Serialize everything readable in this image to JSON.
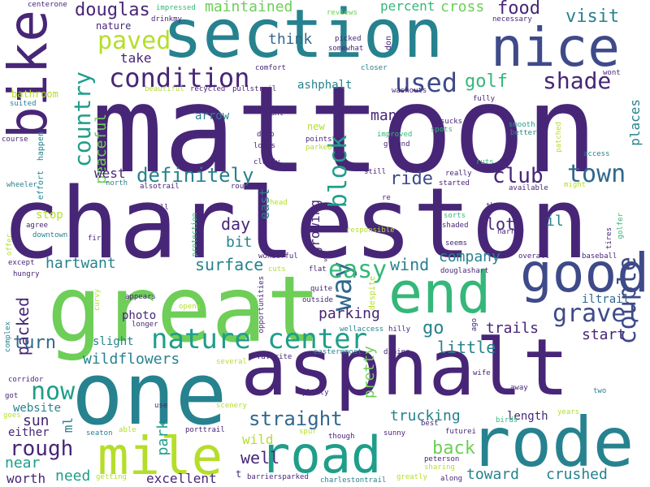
{
  "title": "word cloud",
  "palette": {
    "dark_purple": "#482677",
    "indigo": "#3e4a89",
    "blue": "#31688e",
    "teal": "#26828e",
    "green_teal": "#1f9e89",
    "green": "#35b779",
    "light_green": "#6ece58",
    "yellow_green": "#b5de2b"
  },
  "words": [
    {
      "id": "mattoon",
      "text": "mattoon",
      "color": "#482677"
    },
    {
      "id": "charleston",
      "text": "charleston",
      "color": "#482677"
    },
    {
      "id": "bike",
      "text": "bike",
      "color": "#482677"
    },
    {
      "id": "section",
      "text": "section",
      "color": "#26828e"
    },
    {
      "id": "great",
      "text": "great",
      "color": "#6ece58"
    },
    {
      "id": "one",
      "text": "one",
      "color": "#26828e"
    },
    {
      "id": "asphalt",
      "text": "asphalt",
      "color": "#482677"
    },
    {
      "id": "end",
      "text": "end",
      "color": "#35b779"
    },
    {
      "id": "good",
      "text": "good",
      "color": "#3e4a89"
    },
    {
      "id": "rode",
      "text": "rode",
      "color": "#26828e"
    },
    {
      "id": "mile",
      "text": "mile",
      "color": "#b5de2b"
    },
    {
      "id": "road",
      "text": "road",
      "color": "#1f9e89"
    },
    {
      "id": "nice",
      "text": "nice",
      "color": "#3e4a89"
    },
    {
      "id": "nature-center",
      "text": "nature center",
      "color": "#1f9e89"
    },
    {
      "id": "condition",
      "text": "condition",
      "color": "#482677"
    },
    {
      "id": "couple",
      "text": "couple",
      "color": "#3e4a89"
    },
    {
      "id": "gravel",
      "text": "gravel",
      "color": "#3e4a89"
    },
    {
      "id": "paved",
      "text": "paved",
      "color": "#1f9e89"
    },
    {
      "id": "country",
      "text": "country",
      "color": "#1f9e89"
    },
    {
      "id": "used",
      "text": "used",
      "color": "#3e4a89"
    },
    {
      "id": "shade",
      "text": "shade",
      "color": "#482677"
    },
    {
      "id": "way",
      "text": "way",
      "color": "#31688e"
    },
    {
      "id": "block",
      "text": "block",
      "color": "#1f9e89"
    },
    {
      "id": "easy",
      "text": "easy",
      "color": "#35b779"
    },
    {
      "id": "town",
      "text": "town",
      "color": "#31688e"
    },
    {
      "id": "club",
      "text": "club",
      "color": "#482677"
    },
    {
      "id": "definitely",
      "text": "definitely",
      "color": "#26828e"
    },
    {
      "id": "douglas",
      "text": "douglas",
      "color": "#482677"
    },
    {
      "id": "maintained",
      "text": "maintained",
      "color": "#6ece58"
    },
    {
      "id": "percent",
      "text": "percent",
      "color": "#35b779"
    },
    {
      "id": "cross",
      "text": "cross",
      "color": "#6ece58"
    },
    {
      "id": "food",
      "text": "food",
      "color": "#482677"
    },
    {
      "id": "visit",
      "text": "visit",
      "color": "#26828e"
    },
    {
      "id": "golf",
      "text": "golf",
      "color": "#35b779"
    },
    {
      "id": "take",
      "text": "take",
      "color": "#482677"
    },
    {
      "id": "think",
      "text": "think",
      "color": "#31688e"
    },
    {
      "id": "nature",
      "text": "nature",
      "color": "#482677"
    },
    {
      "id": "peaceful",
      "text": "peaceful",
      "color": "#6ece58"
    },
    {
      "id": "many",
      "text": "many",
      "color": "#482677"
    },
    {
      "id": "ride",
      "text": "ride",
      "color": "#3e4a89"
    },
    {
      "id": "west",
      "text": "west",
      "color": "#482677"
    },
    {
      "id": "wind",
      "text": "wind",
      "color": "#26828e"
    },
    {
      "id": "company",
      "text": "company",
      "color": "#26828e"
    },
    {
      "id": "lot",
      "text": "lot",
      "color": "#482677"
    },
    {
      "id": "day",
      "text": "day",
      "color": "#482677"
    },
    {
      "id": "bit",
      "text": "bit",
      "color": "#26828e"
    },
    {
      "id": "surface",
      "text": "surface",
      "color": "#26828e"
    },
    {
      "id": "hartwant",
      "text": "hartwant",
      "color": "#26828e"
    },
    {
      "id": "packed",
      "text": "packed",
      "color": "#482677"
    },
    {
      "id": "turn",
      "text": "turn",
      "color": "#31688e"
    },
    {
      "id": "now",
      "text": "now",
      "color": "#1f9e89"
    },
    {
      "id": "sun",
      "text": "sun",
      "color": "#482677"
    },
    {
      "id": "rough",
      "text": "rough",
      "color": "#482677"
    },
    {
      "id": "near",
      "text": "near",
      "color": "#1f9e89"
    },
    {
      "id": "wildflowers",
      "text": "wildflowers",
      "color": "#26828e"
    },
    {
      "id": "little",
      "text": "little",
      "color": "#26828e"
    },
    {
      "id": "trails",
      "text": "trails",
      "color": "#482677"
    },
    {
      "id": "go",
      "text": "go",
      "color": "#26828e"
    },
    {
      "id": "start",
      "text": "start",
      "color": "#482677"
    },
    {
      "id": "parking",
      "text": "parking",
      "color": "#482677"
    },
    {
      "id": "straight",
      "text": "straight",
      "color": "#31688e"
    },
    {
      "id": "well",
      "text": "well",
      "color": "#482677"
    },
    {
      "id": "back",
      "text": "back",
      "color": "#6ece58"
    },
    {
      "id": "trucking",
      "text": "trucking",
      "color": "#26828e"
    },
    {
      "id": "toward",
      "text": "toward",
      "color": "#26828e"
    },
    {
      "id": "crushed",
      "text": "crushed",
      "color": "#26828e"
    },
    {
      "id": "excellent",
      "text": "excellent",
      "color": "#482677"
    },
    {
      "id": "need",
      "text": "need",
      "color": "#1f9e89"
    },
    {
      "id": "worth",
      "text": "worth",
      "color": "#482677"
    },
    {
      "id": "park",
      "text": "park",
      "color": "#1f9e89"
    },
    {
      "id": "wild",
      "text": "wild",
      "color": "#b5de2b"
    },
    {
      "id": "pretty",
      "text": "pretty",
      "color": "#6ece58"
    },
    {
      "id": "length",
      "text": "length",
      "color": "#482677"
    },
    {
      "id": "slight",
      "text": "slight",
      "color": "#26828e"
    },
    {
      "id": "photo",
      "text": "photo",
      "color": "#482677"
    },
    {
      "id": "iltrail",
      "text": "iltrail",
      "color": "#31688e"
    },
    {
      "id": "places",
      "text": "places",
      "color": "#26828e"
    },
    {
      "id": "growing",
      "text": "growing",
      "color": "#482677"
    },
    {
      "id": "east",
      "text": "east",
      "color": "#26828e"
    },
    {
      "id": "il",
      "text": "il",
      "color": "#26828e"
    },
    {
      "id": "stop",
      "text": "stop",
      "color": "#b5de2b"
    },
    {
      "id": "website",
      "text": "website",
      "color": "#26828e"
    },
    {
      "id": "either",
      "text": "either",
      "color": "#482677"
    },
    {
      "id": "ml",
      "text": "ml",
      "color": "#26828e"
    },
    {
      "id": "new",
      "text": "new",
      "color": "#b5de2b"
    },
    {
      "id": "arrow",
      "text": "arrow",
      "color": "#26828e"
    },
    {
      "id": "bathroom",
      "text": "bathroom",
      "color": "#b5de2b"
    },
    {
      "id": "ashphalt",
      "text": "ashphalt",
      "color": "#26828e"
    },
    {
      "id": "impressed",
      "text": "impressed",
      "color": "#35b779"
    },
    {
      "id": "drinkmy",
      "text": "drinkmy",
      "color": "#482677"
    },
    {
      "id": "centerone",
      "text": "centerone",
      "color": "#482677"
    },
    {
      "id": "reviews",
      "text": "reviews",
      "color": "#6ece58"
    },
    {
      "id": "picked",
      "text": "picked",
      "color": "#482677"
    },
    {
      "id": "somewhat",
      "text": "somewhat",
      "color": "#482677"
    },
    {
      "id": "don",
      "text": "don",
      "color": "#482677"
    },
    {
      "id": "necessary",
      "text": "necessary",
      "color": "#482677"
    },
    {
      "id": "comfort",
      "text": "comfort",
      "color": "#482677"
    },
    {
      "id": "closer",
      "text": "closer",
      "color": "#26828e"
    },
    {
      "id": "wont",
      "text": "wont",
      "color": "#482677"
    },
    {
      "id": "beautiful",
      "text": "beautiful",
      "color": "#b5de2b"
    },
    {
      "id": "recycled",
      "text": "recycled",
      "color": "#482677"
    },
    {
      "id": "pullstrail",
      "text": "pullstrail",
      "color": "#482677"
    },
    {
      "id": "washouts",
      "text": "washouts",
      "color": "#482677"
    },
    {
      "id": "fully",
      "text": "fully",
      "color": "#482677"
    },
    {
      "id": "suited",
      "text": "suited",
      "color": "#26828e"
    },
    {
      "id": "jaunt",
      "text": "jaunt",
      "color": "#482677"
    },
    {
      "id": "deep",
      "text": "deep",
      "color": "#482677"
    },
    {
      "id": "looks",
      "text": "looks",
      "color": "#482677"
    },
    {
      "id": "points",
      "text": "points",
      "color": "#482677"
    },
    {
      "id": "parked",
      "text": "parked",
      "color": "#b5de2b"
    },
    {
      "id": "improved",
      "text": "improved",
      "color": "#35b779"
    },
    {
      "id": "ground",
      "text": "ground",
      "color": "#482677"
    },
    {
      "id": "sucks",
      "text": "sucks",
      "color": "#482677"
    },
    {
      "id": "spots",
      "text": "spots",
      "color": "#35b779"
    },
    {
      "id": "smooth",
      "text": "smooth",
      "color": "#1f9e89"
    },
    {
      "id": "better",
      "text": "better",
      "color": "#26828e"
    },
    {
      "id": "patched",
      "text": "patched",
      "color": "#b5de2b"
    },
    {
      "id": "access",
      "text": "access",
      "color": "#26828e"
    },
    {
      "id": "course",
      "text": "course",
      "color": "#482677"
    },
    {
      "id": "effort",
      "text": "effort",
      "color": "#26828e"
    },
    {
      "id": "happen",
      "text": "happen",
      "color": "#26828e"
    },
    {
      "id": "north",
      "text": "north",
      "color": "#26828e"
    },
    {
      "id": "alsotrail",
      "text": "alsotrail",
      "color": "#482677"
    },
    {
      "id": "cloudy",
      "text": "cloudy",
      "color": "#482677"
    },
    {
      "id": "route",
      "text": "route",
      "color": "#482677"
    },
    {
      "id": "head",
      "text": "head",
      "color": "#b5de2b"
    },
    {
      "id": "still",
      "text": "still",
      "color": "#482677"
    },
    {
      "id": "re",
      "text": "re",
      "color": "#482677"
    },
    {
      "id": "ruts",
      "text": "ruts",
      "color": "#35b779"
    },
    {
      "id": "really",
      "text": "really",
      "color": "#482677"
    },
    {
      "id": "started",
      "text": "started",
      "color": "#482677"
    },
    {
      "id": "available",
      "text": "available",
      "color": "#482677"
    },
    {
      "id": "might",
      "text": "might",
      "color": "#b5de2b"
    },
    {
      "id": "thanx",
      "text": "thanx",
      "color": "#482677"
    },
    {
      "id": "narrow",
      "text": "narrow",
      "color": "#482677"
    },
    {
      "id": "golfer",
      "text": "golfer",
      "color": "#35b779"
    },
    {
      "id": "tires",
      "text": "tires",
      "color": "#482677"
    },
    {
      "id": "wheeler",
      "text": "wheeler",
      "color": "#26828e"
    },
    {
      "id": "full",
      "text": "full",
      "color": "#482677"
    },
    {
      "id": "agree",
      "text": "agree",
      "color": "#482677"
    },
    {
      "id": "downtown",
      "text": "downtown",
      "color": "#26828e"
    },
    {
      "id": "offer",
      "text": "offer",
      "color": "#b5de2b"
    },
    {
      "id": "first",
      "text": "first",
      "color": "#482677"
    },
    {
      "id": "protection",
      "text": "protection",
      "color": "#35b779"
    },
    {
      "id": "sorts",
      "text": "sorts",
      "color": "#35b779"
    },
    {
      "id": "shaded",
      "text": "shaded",
      "color": "#482677"
    },
    {
      "id": "responsible",
      "text": "responsible",
      "color": "#b5de2b"
    },
    {
      "id": "seems",
      "text": "seems",
      "color": "#482677"
    },
    {
      "id": "except",
      "text": "except",
      "color": "#482677"
    },
    {
      "id": "wonderful",
      "text": "wonderful",
      "color": "#482677"
    },
    {
      "id": "s",
      "text": "s",
      "color": "#482677"
    },
    {
      "id": "overall",
      "text": "overall",
      "color": "#482677"
    },
    {
      "id": "baseball",
      "text": "baseball",
      "color": "#482677"
    },
    {
      "id": "hungry",
      "text": "hungry",
      "color": "#482677"
    },
    {
      "id": "cuts",
      "text": "cuts",
      "color": "#b5de2b"
    },
    {
      "id": "flat",
      "text": "flat",
      "color": "#482677"
    },
    {
      "id": "douglashart",
      "text": "douglashart",
      "color": "#482677"
    },
    {
      "id": "curvy",
      "text": "curvy",
      "color": "#b5de2b"
    },
    {
      "id": "appears",
      "text": "appears",
      "color": "#482677"
    },
    {
      "id": "quite",
      "text": "quite",
      "color": "#482677"
    },
    {
      "id": "despite",
      "text": "despite",
      "color": "#b5de2b"
    },
    {
      "id": "opens",
      "text": "opens",
      "color": "#b5de2b"
    },
    {
      "id": "outside",
      "text": "outside",
      "color": "#482677"
    },
    {
      "id": "opportunities",
      "text": "opportunities",
      "color": "#482677"
    },
    {
      "id": "longer",
      "text": "longer",
      "color": "#482677"
    },
    {
      "id": "wellaccess",
      "text": "wellaccess",
      "color": "#26828e"
    },
    {
      "id": "hilly",
      "text": "hilly",
      "color": "#482677"
    },
    {
      "id": "ago",
      "text": "ago",
      "color": "#482677"
    },
    {
      "id": "complex",
      "text": "complex",
      "color": "#26828e"
    },
    {
      "id": "several",
      "text": "several",
      "color": "#b5de2b"
    },
    {
      "id": "favorite",
      "text": "favorite",
      "color": "#482677"
    },
    {
      "id": "easternmost",
      "text": "easternmost",
      "color": "#26828e"
    },
    {
      "id": "dining",
      "text": "dining",
      "color": "#482677"
    },
    {
      "id": "corridor",
      "text": "corridor",
      "color": "#482677"
    },
    {
      "id": "wife",
      "text": "wife",
      "color": "#482677"
    },
    {
      "id": "away",
      "text": "away",
      "color": "#482677"
    },
    {
      "id": "two",
      "text": "two",
      "color": "#26828e"
    },
    {
      "id": "got",
      "text": "got",
      "color": "#482677"
    },
    {
      "id": "use",
      "text": "use",
      "color": "#482677"
    },
    {
      "id": "scenery",
      "text": "scenery",
      "color": "#b5de2b"
    },
    {
      "id": "plenty",
      "text": "plenty",
      "color": "#482677"
    },
    {
      "id": "goes",
      "text": "goes",
      "color": "#b5de2b"
    },
    {
      "id": "years",
      "text": "years",
      "color": "#b5de2b"
    },
    {
      "id": "birds",
      "text": "birds",
      "color": "#35b779"
    },
    {
      "id": "futurei",
      "text": "futurei",
      "color": "#482677"
    },
    {
      "id": "seaton",
      "text": "seaton",
      "color": "#26828e"
    },
    {
      "id": "able",
      "text": "able",
      "color": "#b5de2b"
    },
    {
      "id": "porttrail",
      "text": "porttrail",
      "color": "#482677"
    },
    {
      "id": "spur",
      "text": "spur",
      "color": "#b5de2b"
    },
    {
      "id": "though",
      "text": "though",
      "color": "#482677"
    },
    {
      "id": "sunny",
      "text": "sunny",
      "color": "#482677"
    },
    {
      "id": "best",
      "text": "best",
      "color": "#482677"
    },
    {
      "id": "peterson",
      "text": "peterson",
      "color": "#482677"
    },
    {
      "id": "sharing",
      "text": "sharing",
      "color": "#b5de2b"
    },
    {
      "id": "t",
      "text": "t",
      "color": "#482677"
    },
    {
      "id": "barriersparked",
      "text": "barriersparked",
      "color": "#482677"
    },
    {
      "id": "charlestontrail",
      "text": "charlestontrail",
      "color": "#26828e"
    },
    {
      "id": "greatly",
      "text": "greatly",
      "color": "#b5de2b"
    },
    {
      "id": "along",
      "text": "along",
      "color": "#482677"
    },
    {
      "id": "getting",
      "text": "getting",
      "color": "#b5de2b"
    }
  ]
}
